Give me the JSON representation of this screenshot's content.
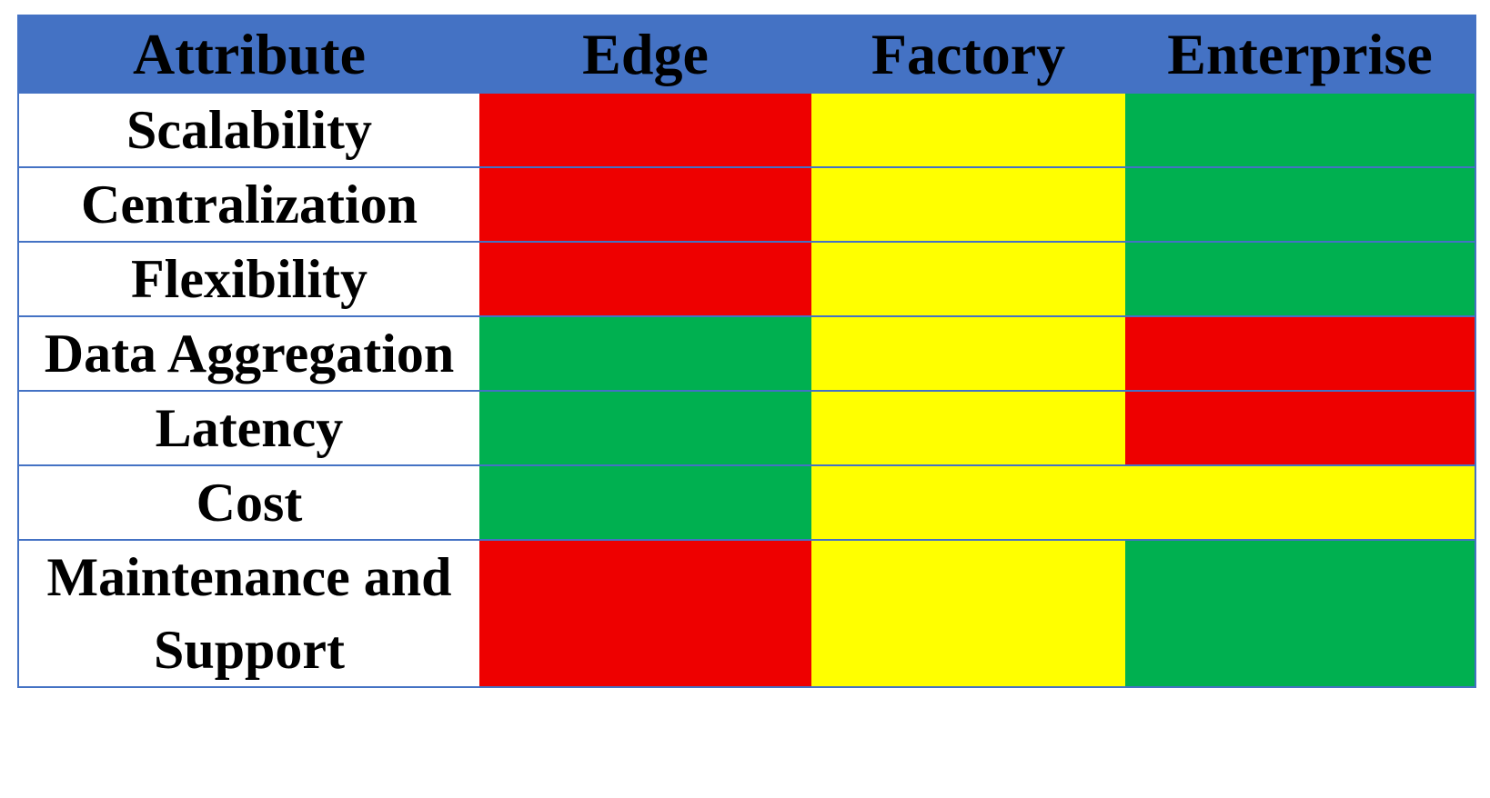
{
  "table": {
    "header": [
      "Attribute",
      "Edge",
      "Factory",
      "Enterprise"
    ],
    "rows": [
      {
        "attribute": "Scalability",
        "colors": [
          "#ee0000",
          "#ffff00",
          "#00b050"
        ]
      },
      {
        "attribute": "Centralization",
        "colors": [
          "#ee0000",
          "#ffff00",
          "#00b050"
        ]
      },
      {
        "attribute": "Flexibility",
        "colors": [
          "#ee0000",
          "#ffff00",
          "#00b050"
        ]
      },
      {
        "attribute": "Data Aggregation",
        "colors": [
          "#00b050",
          "#ffff00",
          "#ee0000"
        ]
      },
      {
        "attribute": "Latency",
        "colors": [
          "#00b050",
          "#ffff00",
          "#ee0000"
        ]
      },
      {
        "attribute": "Cost",
        "colors": [
          "#00b050",
          "#ffff00",
          "#ffff00"
        ]
      },
      {
        "attribute": "Maintenance and Support",
        "colors": [
          "#ee0000",
          "#ffff00",
          "#00b050"
        ]
      }
    ]
  }
}
